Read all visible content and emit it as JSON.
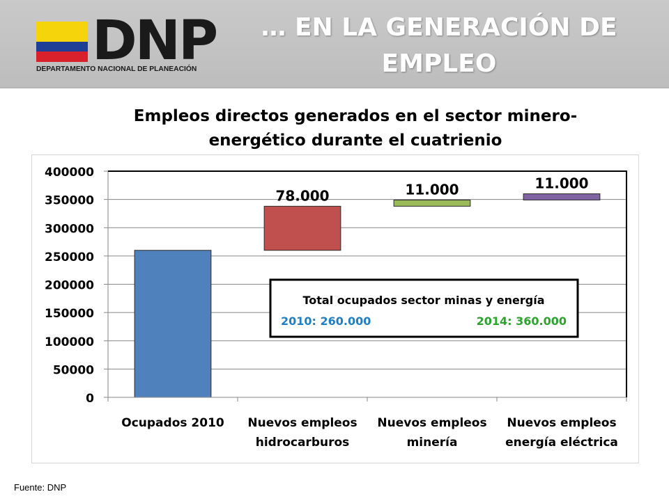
{
  "header": {
    "logo_text": "DNP",
    "logo_subtitle": "DEPARTAMENTO NACIONAL DE PLANEACIÓN",
    "title_line1": "… EN LA GENERACIÓN DE",
    "title_line2": "EMPLEO"
  },
  "colors": {
    "flag_yellow": "#f6d40c",
    "flag_blue": "#1f3f96",
    "flag_red": "#d8212a",
    "logo_text": "#1a1a1a",
    "header_bg": "#c3c3c3"
  },
  "chart_data": {
    "type": "bar",
    "subtype": "waterfall",
    "title_line1": "Empleos directos generados en el sector minero-",
    "title_line2": "energético durante el cuatrienio",
    "xlabel": "",
    "ylabel": "",
    "ylim": [
      0,
      400000
    ],
    "yticks": [
      "0",
      "50000",
      "100000",
      "150000",
      "200000",
      "250000",
      "300000",
      "350000",
      "400000"
    ],
    "grid": true,
    "legend": "none",
    "categories": [
      {
        "line1": "Ocupados 2010",
        "line2": ""
      },
      {
        "line1": "Nuevos empleos",
        "line2": "hidrocarburos"
      },
      {
        "line1": "Nuevos empleos",
        "line2": "minería"
      },
      {
        "line1": "Nuevos empleos",
        "line2": "energía eléctrica"
      }
    ],
    "bars": [
      {
        "base": 0,
        "value": 260000,
        "color": "#4f81bd",
        "label": ""
      },
      {
        "base": 260000,
        "value": 78000,
        "color": "#c0504d",
        "label": "78.000"
      },
      {
        "base": 338000,
        "value": 11000,
        "color": "#9bbb59",
        "label": "11.000"
      },
      {
        "base": 349000,
        "value": 11000,
        "color": "#8064a2",
        "label": "11.000"
      }
    ],
    "annotation": {
      "title": "Total ocupados sector minas y energía",
      "left_text": "2010: 260.000",
      "left_color": "#1f7fc4",
      "right_text": "2014: 360.000",
      "right_color": "#2aa42a"
    }
  },
  "footer": {
    "source": "Fuente: DNP"
  }
}
